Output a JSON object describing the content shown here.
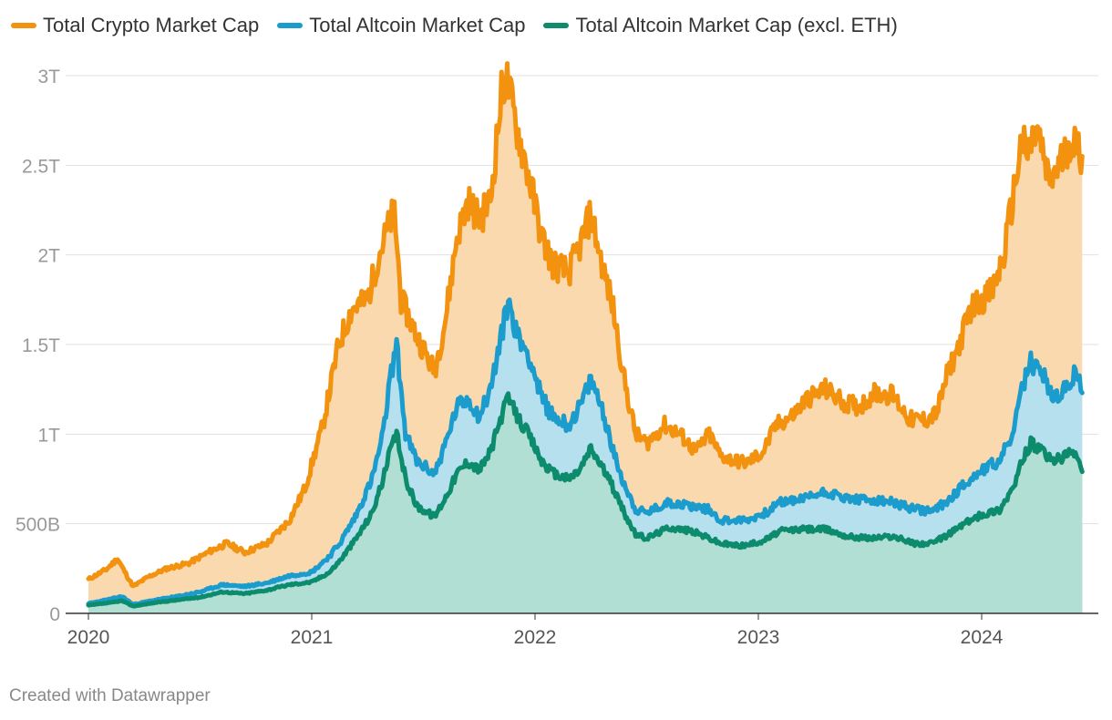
{
  "chart_data": {
    "type": "area",
    "title": "",
    "xlabel": "",
    "ylabel": "",
    "ylim": [
      0,
      3000
    ],
    "y_unit": "billion USD",
    "xlim": [
      2020.0,
      2024.45
    ],
    "x_ticks": [
      {
        "value": 2020,
        "label": "2020"
      },
      {
        "value": 2021,
        "label": "2021"
      },
      {
        "value": 2022,
        "label": "2022"
      },
      {
        "value": 2023,
        "label": "2023"
      },
      {
        "value": 2024,
        "label": "2024"
      }
    ],
    "y_ticks": [
      {
        "value": 0,
        "label": "0"
      },
      {
        "value": 500,
        "label": "500B"
      },
      {
        "value": 1000,
        "label": "1T"
      },
      {
        "value": 1500,
        "label": "1.5T"
      },
      {
        "value": 2000,
        "label": "2T"
      },
      {
        "value": 2500,
        "label": "2.5T"
      },
      {
        "value": 3000,
        "label": "3T"
      }
    ],
    "grid": true,
    "legend_position": "top-left",
    "series": [
      {
        "name": "Total Crypto Market Cap",
        "color": "#f2920f",
        "fill": "#fbd9ae",
        "points": [
          [
            2020.0,
            190
          ],
          [
            2020.08,
            245
          ],
          [
            2020.13,
            305
          ],
          [
            2020.2,
            150
          ],
          [
            2020.27,
            205
          ],
          [
            2020.35,
            250
          ],
          [
            2020.45,
            280
          ],
          [
            2020.55,
            350
          ],
          [
            2020.62,
            390
          ],
          [
            2020.7,
            340
          ],
          [
            2020.8,
            390
          ],
          [
            2020.9,
            520
          ],
          [
            2020.97,
            700
          ],
          [
            2021.05,
            1050
          ],
          [
            2021.12,
            1500
          ],
          [
            2021.18,
            1700
          ],
          [
            2021.25,
            1750
          ],
          [
            2021.3,
            2000
          ],
          [
            2021.37,
            2250
          ],
          [
            2021.4,
            1750
          ],
          [
            2021.47,
            1550
          ],
          [
            2021.55,
            1350
          ],
          [
            2021.6,
            1650
          ],
          [
            2021.65,
            2100
          ],
          [
            2021.7,
            2300
          ],
          [
            2021.75,
            2200
          ],
          [
            2021.8,
            2300
          ],
          [
            2021.85,
            2900
          ],
          [
            2021.87,
            3000
          ],
          [
            2021.92,
            2700
          ],
          [
            2021.97,
            2450
          ],
          [
            2022.03,
            2100
          ],
          [
            2022.08,
            1950
          ],
          [
            2022.15,
            1900
          ],
          [
            2022.2,
            2050
          ],
          [
            2022.25,
            2230
          ],
          [
            2022.3,
            1950
          ],
          [
            2022.35,
            1700
          ],
          [
            2022.4,
            1300
          ],
          [
            2022.45,
            1000
          ],
          [
            2022.5,
            950
          ],
          [
            2022.58,
            1050
          ],
          [
            2022.65,
            1000
          ],
          [
            2022.72,
            900
          ],
          [
            2022.78,
            1000
          ],
          [
            2022.83,
            880
          ],
          [
            2022.9,
            850
          ],
          [
            2022.95,
            840
          ],
          [
            2023.02,
            900
          ],
          [
            2023.08,
            1050
          ],
          [
            2023.15,
            1100
          ],
          [
            2023.22,
            1200
          ],
          [
            2023.3,
            1250
          ],
          [
            2023.38,
            1180
          ],
          [
            2023.45,
            1150
          ],
          [
            2023.52,
            1230
          ],
          [
            2023.6,
            1220
          ],
          [
            2023.68,
            1080
          ],
          [
            2023.75,
            1080
          ],
          [
            2023.8,
            1120
          ],
          [
            2023.85,
            1350
          ],
          [
            2023.9,
            1500
          ],
          [
            2023.95,
            1700
          ],
          [
            2024.0,
            1750
          ],
          [
            2024.05,
            1800
          ],
          [
            2024.1,
            2000
          ],
          [
            2024.15,
            2400
          ],
          [
            2024.18,
            2650
          ],
          [
            2024.2,
            2550
          ],
          [
            2024.25,
            2700
          ],
          [
            2024.3,
            2400
          ],
          [
            2024.35,
            2500
          ],
          [
            2024.4,
            2650
          ],
          [
            2024.45,
            2550
          ]
        ]
      },
      {
        "name": "Total Altcoin Market Cap",
        "color": "#1b9ccc",
        "fill": "#b6e0ee",
        "points": [
          [
            2020.0,
            55
          ],
          [
            2020.1,
            80
          ],
          [
            2020.15,
            95
          ],
          [
            2020.2,
            50
          ],
          [
            2020.3,
            75
          ],
          [
            2020.4,
            95
          ],
          [
            2020.5,
            120
          ],
          [
            2020.6,
            160
          ],
          [
            2020.7,
            150
          ],
          [
            2020.8,
            170
          ],
          [
            2020.9,
            210
          ],
          [
            2021.0,
            230
          ],
          [
            2021.08,
            320
          ],
          [
            2021.13,
            400
          ],
          [
            2021.2,
            550
          ],
          [
            2021.27,
            750
          ],
          [
            2021.32,
            1000
          ],
          [
            2021.35,
            1300
          ],
          [
            2021.38,
            1500
          ],
          [
            2021.42,
            1000
          ],
          [
            2021.47,
            850
          ],
          [
            2021.55,
            780
          ],
          [
            2021.6,
            950
          ],
          [
            2021.65,
            1150
          ],
          [
            2021.7,
            1200
          ],
          [
            2021.75,
            1100
          ],
          [
            2021.8,
            1250
          ],
          [
            2021.85,
            1550
          ],
          [
            2021.88,
            1750
          ],
          [
            2021.92,
            1550
          ],
          [
            2021.97,
            1450
          ],
          [
            2022.03,
            1200
          ],
          [
            2022.08,
            1100
          ],
          [
            2022.15,
            1050
          ],
          [
            2022.2,
            1150
          ],
          [
            2022.25,
            1300
          ],
          [
            2022.3,
            1150
          ],
          [
            2022.35,
            900
          ],
          [
            2022.4,
            720
          ],
          [
            2022.45,
            580
          ],
          [
            2022.5,
            560
          ],
          [
            2022.6,
            620
          ],
          [
            2022.7,
            600
          ],
          [
            2022.78,
            580
          ],
          [
            2022.83,
            520
          ],
          [
            2022.9,
            520
          ],
          [
            2022.95,
            520
          ],
          [
            2023.03,
            560
          ],
          [
            2023.1,
            620
          ],
          [
            2023.2,
            640
          ],
          [
            2023.3,
            680
          ],
          [
            2023.4,
            640
          ],
          [
            2023.5,
            630
          ],
          [
            2023.6,
            620
          ],
          [
            2023.7,
            580
          ],
          [
            2023.78,
            570
          ],
          [
            2023.85,
            630
          ],
          [
            2023.92,
            720
          ],
          [
            2024.0,
            800
          ],
          [
            2024.08,
            850
          ],
          [
            2024.12,
            950
          ],
          [
            2024.15,
            1050
          ],
          [
            2024.18,
            1250
          ],
          [
            2024.22,
            1400
          ],
          [
            2024.27,
            1350
          ],
          [
            2024.32,
            1200
          ],
          [
            2024.38,
            1250
          ],
          [
            2024.42,
            1350
          ],
          [
            2024.45,
            1230
          ]
        ]
      },
      {
        "name": "Total Altcoin Market Cap (excl. ETH)",
        "color": "#0d8b6d",
        "fill": "#b2dfd4",
        "points": [
          [
            2020.0,
            45
          ],
          [
            2020.1,
            60
          ],
          [
            2020.15,
            70
          ],
          [
            2020.2,
            40
          ],
          [
            2020.3,
            60
          ],
          [
            2020.4,
            75
          ],
          [
            2020.5,
            90
          ],
          [
            2020.6,
            120
          ],
          [
            2020.7,
            110
          ],
          [
            2020.8,
            130
          ],
          [
            2020.9,
            160
          ],
          [
            2021.0,
            175
          ],
          [
            2021.08,
            230
          ],
          [
            2021.13,
            300
          ],
          [
            2021.2,
            420
          ],
          [
            2021.27,
            560
          ],
          [
            2021.32,
            750
          ],
          [
            2021.35,
            900
          ],
          [
            2021.38,
            1000
          ],
          [
            2021.42,
            750
          ],
          [
            2021.47,
            600
          ],
          [
            2021.55,
            540
          ],
          [
            2021.6,
            650
          ],
          [
            2021.65,
            780
          ],
          [
            2021.7,
            850
          ],
          [
            2021.75,
            800
          ],
          [
            2021.8,
            900
          ],
          [
            2021.85,
            1100
          ],
          [
            2021.88,
            1200
          ],
          [
            2021.92,
            1100
          ],
          [
            2021.97,
            1000
          ],
          [
            2022.03,
            850
          ],
          [
            2022.08,
            780
          ],
          [
            2022.15,
            750
          ],
          [
            2022.2,
            800
          ],
          [
            2022.25,
            920
          ],
          [
            2022.3,
            820
          ],
          [
            2022.35,
            700
          ],
          [
            2022.4,
            560
          ],
          [
            2022.45,
            440
          ],
          [
            2022.5,
            420
          ],
          [
            2022.6,
            480
          ],
          [
            2022.7,
            460
          ],
          [
            2022.78,
            420
          ],
          [
            2022.83,
            390
          ],
          [
            2022.9,
            380
          ],
          [
            2022.95,
            380
          ],
          [
            2023.03,
            410
          ],
          [
            2023.1,
            460
          ],
          [
            2023.2,
            470
          ],
          [
            2023.3,
            470
          ],
          [
            2023.4,
            430
          ],
          [
            2023.5,
            420
          ],
          [
            2023.6,
            430
          ],
          [
            2023.7,
            390
          ],
          [
            2023.78,
            390
          ],
          [
            2023.85,
            440
          ],
          [
            2023.92,
            500
          ],
          [
            2024.0,
            550
          ],
          [
            2024.08,
            580
          ],
          [
            2024.12,
            660
          ],
          [
            2024.15,
            720
          ],
          [
            2024.18,
            850
          ],
          [
            2024.22,
            950
          ],
          [
            2024.27,
            900
          ],
          [
            2024.32,
            850
          ],
          [
            2024.38,
            880
          ],
          [
            2024.42,
            900
          ],
          [
            2024.45,
            790
          ]
        ]
      }
    ]
  },
  "legend": {
    "items": [
      {
        "label": "Total Crypto Market Cap",
        "color": "#f2920f"
      },
      {
        "label": "Total Altcoin Market Cap",
        "color": "#1b9ccc"
      },
      {
        "label": "Total Altcoin Market Cap (excl. ETH)",
        "color": "#0d8b6d"
      }
    ]
  },
  "footer": {
    "credit": "Created with Datawrapper"
  }
}
